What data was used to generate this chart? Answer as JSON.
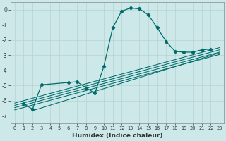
{
  "title": "",
  "xlabel": "Humidex (Indice chaleur)",
  "bg_color": "#cce8e8",
  "line_color": "#006b6b",
  "xlim": [
    -0.5,
    23.5
  ],
  "ylim": [
    -7.5,
    0.5
  ],
  "xticks": [
    0,
    1,
    2,
    3,
    4,
    5,
    6,
    7,
    8,
    9,
    10,
    11,
    12,
    13,
    14,
    15,
    16,
    17,
    18,
    19,
    20,
    21,
    22,
    23
  ],
  "yticks": [
    0,
    -1,
    -2,
    -3,
    -4,
    -5,
    -6,
    -7
  ],
  "curve_x": [
    1,
    2,
    3,
    6,
    7,
    8,
    9,
    10,
    11,
    12,
    13,
    14,
    15,
    16,
    17,
    18,
    19,
    20,
    21,
    22
  ],
  "curve_y": [
    -6.2,
    -6.55,
    -4.95,
    -4.8,
    -4.75,
    -5.15,
    -5.5,
    -3.75,
    -1.2,
    -0.1,
    0.1,
    0.05,
    -0.35,
    -1.2,
    -2.1,
    -2.75,
    -2.8,
    -2.8,
    -2.65,
    -2.6
  ],
  "linear_lines": [
    {
      "x": [
        0,
        23
      ],
      "y": [
        -6.15,
        -2.5
      ]
    },
    {
      "x": [
        0,
        23
      ],
      "y": [
        -6.3,
        -2.65
      ]
    },
    {
      "x": [
        0,
        23
      ],
      "y": [
        -6.45,
        -2.8
      ]
    },
    {
      "x": [
        0,
        23
      ],
      "y": [
        -6.6,
        -2.95
      ]
    },
    {
      "x": [
        2,
        23
      ],
      "y": [
        -6.65,
        -2.85
      ]
    }
  ]
}
